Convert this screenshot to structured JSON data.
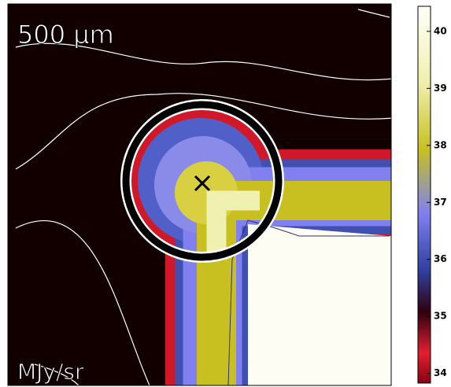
{
  "chart_data": {
    "type": "image",
    "title": "500 μm",
    "colorbar_label": "MJy/sr",
    "clim": [
      33.83,
      40.44
    ],
    "colorbar_ticks": [
      34,
      35,
      36,
      37,
      38,
      39,
      40
    ]
  }
}
